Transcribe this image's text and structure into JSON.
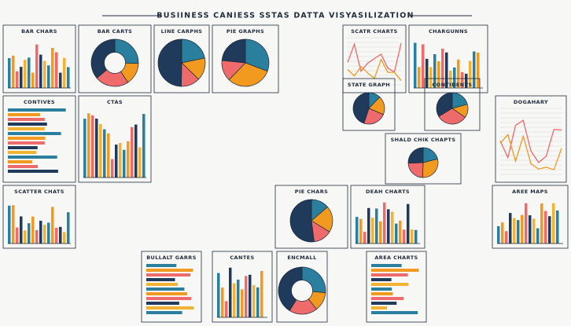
{
  "title": "BUSIINESS CANIESS SSTAS DATTA VISYASILIZATION",
  "panels": [
    {
      "label": "BAR CHARS"
    },
    {
      "label": "BAR CARTS"
    },
    {
      "label": "LINE CARPHS"
    },
    {
      "label": "PIE GRAPHS"
    },
    {
      "label": "SCATR CHARTS"
    },
    {
      "label": "CHARGUNNS"
    },
    {
      "label": "CONTIVES"
    },
    {
      "label": "CTAS"
    },
    {
      "label": "STATE GRAPH"
    },
    {
      "label": "CONTIDENTS"
    },
    {
      "label": "SHALD CHIK CHAPTS"
    },
    {
      "label": "DOGAHARY"
    },
    {
      "label": "SCATTER CHATS"
    },
    {
      "label": "PIE CHARS"
    },
    {
      "label": "DEAH CHARTS"
    },
    {
      "label": "AREE MAPS"
    },
    {
      "label": "BULLALT GARRS"
    },
    {
      "label": "CANTES"
    },
    {
      "label": "ENCMALL"
    },
    {
      "label": "AREA CHARTS"
    }
  ]
}
